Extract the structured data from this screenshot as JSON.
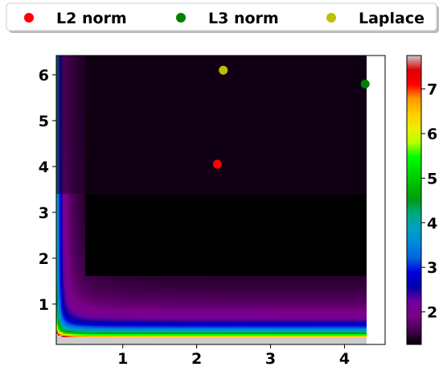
{
  "chart_data": {
    "type": "heatmap",
    "title": "",
    "xlabel": "",
    "ylabel": "",
    "xlim": [
      0.1,
      4.55
    ],
    "ylim": [
      0.12,
      6.42
    ],
    "data_extent": {
      "x": [
        0.1,
        4.3
      ],
      "y": [
        0.12,
        6.42
      ]
    },
    "x_ticks": [
      {
        "value": 1,
        "label": "1"
      },
      {
        "value": 2,
        "label": "2"
      },
      {
        "value": 3,
        "label": "3"
      },
      {
        "value": 4,
        "label": "4"
      }
    ],
    "y_ticks": [
      {
        "value": 1,
        "label": "1"
      },
      {
        "value": 2,
        "label": "2"
      },
      {
        "value": 3,
        "label": "3"
      },
      {
        "value": 4,
        "label": "4"
      },
      {
        "value": 5,
        "label": "5"
      },
      {
        "value": 6,
        "label": "6"
      }
    ],
    "grid": false,
    "colormap": "nipy_spectral",
    "colorbar": {
      "range": [
        1.27,
        7.75
      ],
      "ticks": [
        {
          "value": 2,
          "label": "2"
        },
        {
          "value": 3,
          "label": "3"
        },
        {
          "value": 4,
          "label": "4"
        },
        {
          "value": 5,
          "label": "5"
        },
        {
          "value": 6,
          "label": "6"
        },
        {
          "value": 7,
          "label": "7"
        }
      ]
    },
    "legend_position": "top, outside plot",
    "series": [
      {
        "name": "L2 norm",
        "type": "scatter",
        "color": "#ff0000",
        "x": [
          2.28
        ],
        "y": [
          4.05
        ]
      },
      {
        "name": "L3 norm",
        "type": "scatter",
        "color": "#008000",
        "x": [
          4.28
        ],
        "y": [
          5.8
        ]
      },
      {
        "name": "Laplace",
        "type": "scatter",
        "color": "#bfbf00",
        "x": [
          2.36
        ],
        "y": [
          6.1
        ]
      }
    ]
  }
}
